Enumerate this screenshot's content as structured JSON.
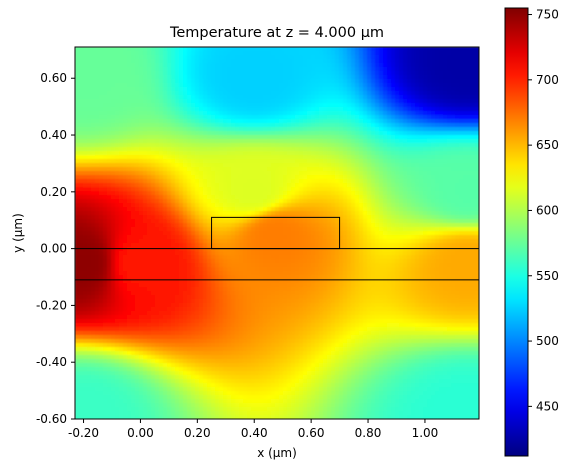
{
  "chart_data": {
    "type": "heatmap",
    "title": "Temperature at z = 4.000 μm",
    "xlabel": "x (μm)",
    "ylabel": "y (μm)",
    "xlim": [
      -0.23,
      1.19
    ],
    "ylim": [
      -0.6,
      0.71
    ],
    "x_ticks": [
      -0.2,
      0.0,
      0.2,
      0.4,
      0.6,
      0.8,
      1.0
    ],
    "x_tick_labels": [
      "-0.20",
      "0.00",
      "0.20",
      "0.40",
      "0.60",
      "0.80",
      "1.00"
    ],
    "y_ticks": [
      -0.6,
      -0.4,
      -0.2,
      0.0,
      0.2,
      0.4,
      0.6
    ],
    "y_tick_labels": [
      "-0.60",
      "-0.40",
      "-0.20",
      "0.00",
      "0.20",
      "0.40",
      "0.60"
    ],
    "colormap": "jet",
    "colorbar": {
      "vmin": 412,
      "vmax": 755,
      "ticks": [
        450,
        500,
        550,
        600,
        650,
        700,
        750
      ],
      "tick_labels": [
        "450",
        "500",
        "550",
        "600",
        "650",
        "700",
        "750"
      ]
    },
    "structures": [
      {
        "name": "waveguide",
        "x": [
          -0.23,
          1.19
        ],
        "y": [
          -0.11,
          0.0
        ]
      },
      {
        "name": "rib",
        "x": [
          0.25,
          0.7
        ],
        "y": [
          0.0,
          0.11
        ]
      }
    ],
    "field_samples": [
      {
        "x": -0.2,
        "y": -0.05,
        "value": 750
      },
      {
        "x": 0.0,
        "y": -0.05,
        "value": 705
      },
      {
        "x": 0.47,
        "y": 0.05,
        "value": 670
      },
      {
        "x": 1.15,
        "y": -0.05,
        "value": 655
      },
      {
        "x": -0.2,
        "y": 0.6,
        "value": 575
      },
      {
        "x": 0.4,
        "y": 0.6,
        "value": 525
      },
      {
        "x": 1.15,
        "y": 0.65,
        "value": 425
      },
      {
        "x": 1.15,
        "y": -0.58,
        "value": 555
      },
      {
        "x": -0.2,
        "y": -0.58,
        "value": 560
      },
      {
        "x": 0.4,
        "y": 0.2,
        "value": 615
      },
      {
        "x": 1.15,
        "y": 0.2,
        "value": 570
      }
    ]
  }
}
